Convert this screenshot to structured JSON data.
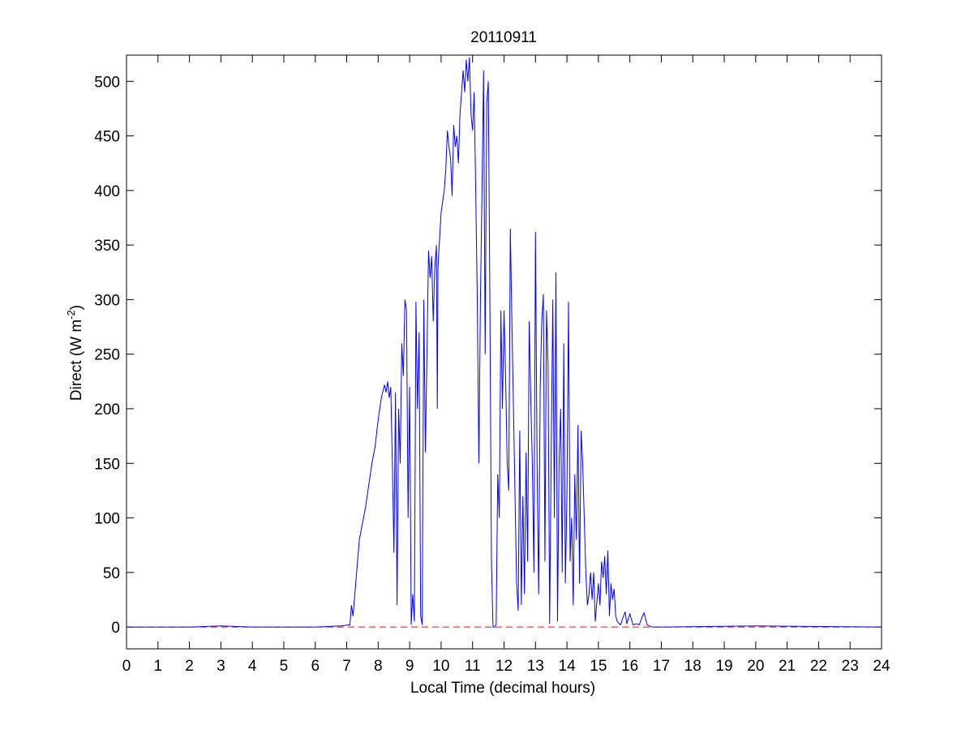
{
  "chart_data": {
    "type": "line",
    "title": "20110911",
    "xlabel": "Local Time (decimal hours)",
    "ylabel": {
      "text": "Direct (W m",
      "superscript": "-2",
      "suffix": ")"
    },
    "xlim": [
      0,
      24
    ],
    "xticks": [
      0,
      1,
      2,
      3,
      4,
      5,
      6,
      7,
      8,
      9,
      10,
      11,
      12,
      13,
      14,
      15,
      16,
      17,
      18,
      19,
      20,
      21,
      22,
      23,
      24
    ],
    "ylim": [
      -20,
      524
    ],
    "yticks": [
      0,
      50,
      100,
      150,
      200,
      250,
      300,
      350,
      400,
      450,
      500
    ],
    "reference_line": {
      "y": 0,
      "color": "#ff0000",
      "dashed": true
    },
    "series": [
      {
        "color": "#0000ff",
        "x": [
          0,
          2,
          3,
          4,
          5,
          6,
          6.8,
          7.1,
          7.15,
          7.2,
          7.3,
          7.4,
          7.6,
          7.8,
          7.9,
          8.0,
          8.1,
          8.2,
          8.25,
          8.3,
          8.35,
          8.4,
          8.45,
          8.5,
          8.55,
          8.6,
          8.65,
          8.7,
          8.75,
          8.8,
          8.85,
          8.9,
          8.95,
          9.0,
          9.05,
          9.1,
          9.15,
          9.2,
          9.25,
          9.3,
          9.35,
          9.4,
          9.45,
          9.5,
          9.55,
          9.6,
          9.65,
          9.7,
          9.75,
          9.8,
          9.85,
          9.88,
          9.9,
          10.0,
          10.1,
          10.15,
          10.2,
          10.25,
          10.3,
          10.35,
          10.4,
          10.45,
          10.5,
          10.55,
          10.6,
          10.7,
          10.75,
          10.8,
          10.85,
          10.9,
          10.95,
          11.0,
          11.05,
          11.1,
          11.15,
          11.2,
          11.25,
          11.3,
          11.35,
          11.4,
          11.45,
          11.5,
          11.55,
          11.6,
          11.65,
          11.7,
          11.75,
          11.8,
          11.85,
          11.9,
          11.95,
          12.0,
          12.05,
          12.1,
          12.15,
          12.2,
          12.25,
          12.3,
          12.4,
          12.45,
          12.5,
          12.55,
          12.6,
          12.65,
          12.7,
          12.75,
          12.8,
          12.85,
          12.9,
          12.95,
          13.0,
          13.05,
          13.1,
          13.15,
          13.2,
          13.25,
          13.3,
          13.35,
          13.4,
          13.45,
          13.5,
          13.55,
          13.6,
          13.65,
          13.7,
          13.75,
          13.8,
          13.85,
          13.9,
          13.95,
          14.0,
          14.05,
          14.1,
          14.15,
          14.2,
          14.25,
          14.3,
          14.35,
          14.4,
          14.45,
          14.5,
          14.55,
          14.6,
          14.65,
          14.7,
          14.75,
          14.8,
          14.85,
          14.9,
          15.0,
          15.05,
          15.1,
          15.15,
          15.2,
          15.25,
          15.3,
          15.35,
          15.4,
          15.45,
          15.5,
          15.55,
          15.6,
          15.7,
          15.8,
          15.85,
          15.9,
          16.0,
          16.1,
          16.2,
          16.3,
          16.4,
          16.45,
          16.55,
          16.7,
          17,
          20,
          24
        ],
        "values": [
          0,
          0,
          1,
          0,
          0,
          0,
          1,
          2,
          20,
          10,
          45,
          80,
          110,
          150,
          165,
          190,
          210,
          222,
          215,
          225,
          210,
          220,
          150,
          68,
          215,
          20,
          200,
          150,
          260,
          230,
          300,
          290,
          100,
          220,
          2,
          30,
          5,
          298,
          200,
          270,
          10,
          2,
          300,
          160,
          250,
          345,
          320,
          340,
          280,
          330,
          350,
          200,
          330,
          380,
          400,
          420,
          455,
          440,
          430,
          395,
          460,
          440,
          450,
          425,
          470,
          510,
          490,
          520,
          500,
          522,
          470,
          455,
          490,
          400,
          300,
          150,
          300,
          400,
          510,
          250,
          480,
          500,
          300,
          60,
          0,
          0,
          2,
          140,
          100,
          290,
          200,
          290,
          230,
          150,
          125,
          365,
          280,
          200,
          40,
          15,
          180,
          20,
          120,
          30,
          160,
          60,
          280,
          210,
          150,
          50,
          362,
          150,
          30,
          220,
          280,
          305,
          60,
          290,
          240,
          3,
          160,
          300,
          100,
          325,
          5,
          150,
          200,
          50,
          260,
          40,
          120,
          298,
          60,
          100,
          20,
          140,
          80,
          185,
          40,
          180,
          150,
          100,
          50,
          20,
          30,
          50,
          25,
          50,
          5,
          40,
          20,
          60,
          45,
          65,
          30,
          70,
          10,
          40,
          25,
          35,
          10,
          5,
          2,
          10,
          14,
          3,
          12,
          2,
          3,
          2,
          10,
          13,
          2,
          0,
          0,
          1,
          0
        ]
      }
    ]
  }
}
